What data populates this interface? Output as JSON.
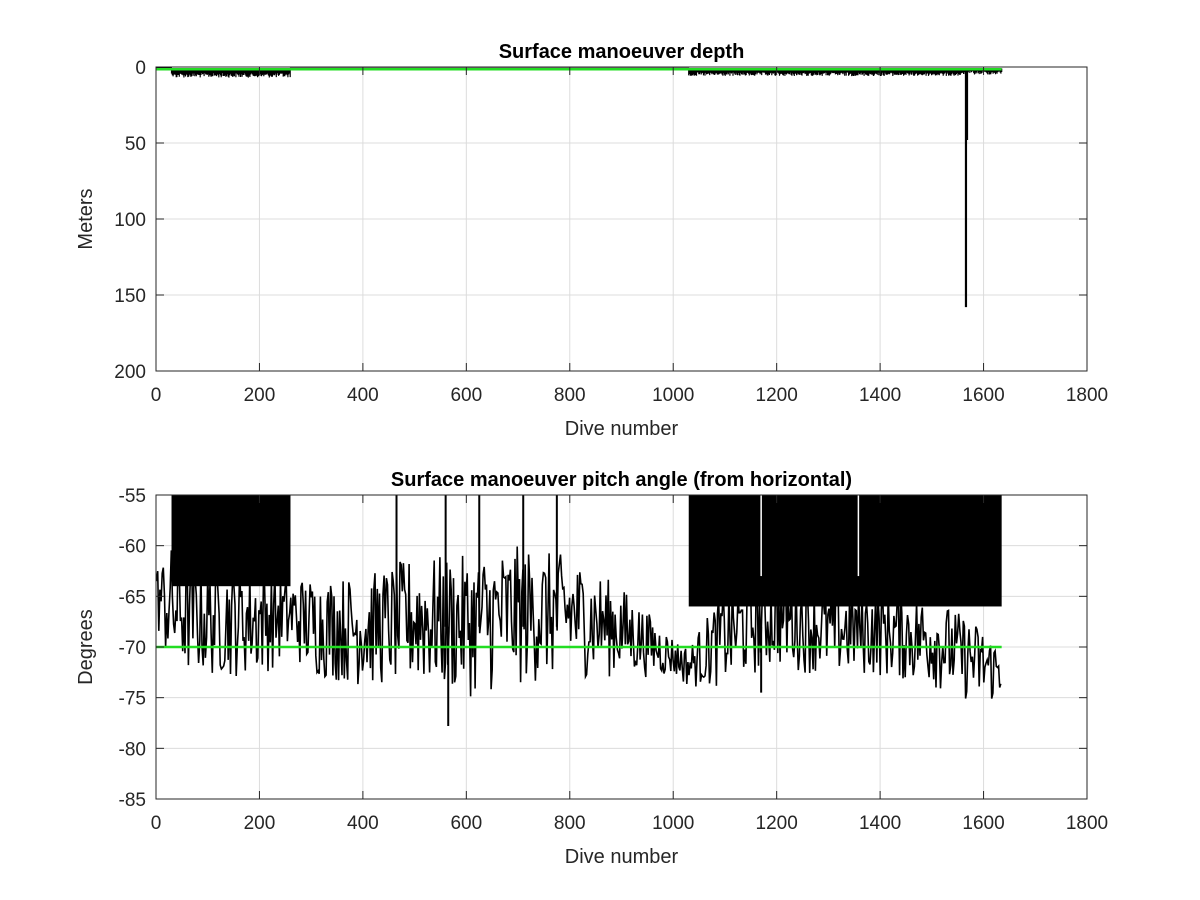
{
  "colors": {
    "data_trace": "#000000",
    "reference_line": "#22dd22",
    "grid": "#dcdcdc",
    "axes": "#262626"
  },
  "chart_data": [
    {
      "type": "line",
      "title": "Surface manoeuver depth",
      "xlabel": "Dive number",
      "ylabel": "Meters",
      "xlim": [
        0,
        1800
      ],
      "ylim": [
        0,
        200
      ],
      "y_reversed": true,
      "grid": true,
      "x_ticks": [
        "0",
        "200",
        "400",
        "600",
        "800",
        "1000",
        "1200",
        "1400",
        "1600",
        "1800"
      ],
      "y_ticks": [
        "0",
        "50",
        "100",
        "150",
        "200"
      ],
      "x_tick_values": [
        0,
        200,
        400,
        600,
        800,
        1000,
        1200,
        1400,
        1600,
        1800
      ],
      "y_tick_values": [
        0,
        50,
        100,
        150,
        200
      ],
      "data_range": [
        1,
        1635
      ],
      "series": [
        {
          "color": "#000000",
          "segments": [
            {
              "x": [
                1,
                30
              ],
              "y_min": 0,
              "y_max": 2
            },
            {
              "x": [
                30,
                260
              ],
              "y_min": 2,
              "y_max": 7
            },
            {
              "x": [
                260,
                1030
              ],
              "y_min": 0.5,
              "y_max": 2
            },
            {
              "x": [
                1030,
                1560
              ],
              "y_min": 2,
              "y_max": 6
            },
            {
              "x": [
                1560,
                1635
              ],
              "y_min": 1,
              "y_max": 5
            }
          ],
          "spikes": [
            {
              "x": 1566,
              "y": 158
            },
            {
              "x": 1568,
              "y": 48
            }
          ]
        },
        {
          "color": "#22dd22",
          "type": "reference",
          "x": [
            1,
            1635
          ],
          "y": [
            1.5,
            1.5
          ]
        }
      ]
    },
    {
      "type": "line",
      "title": "Surface manoeuver pitch angle (from horizontal)",
      "xlabel": "Dive number",
      "ylabel": "Degrees",
      "xlim": [
        0,
        1800
      ],
      "ylim": [
        -85,
        -55
      ],
      "grid": true,
      "x_ticks": [
        "0",
        "200",
        "400",
        "600",
        "800",
        "1000",
        "1200",
        "1400",
        "1600",
        "1800"
      ],
      "y_ticks": [
        "-55",
        "-60",
        "-65",
        "-70",
        "-75",
        "-80",
        "-85"
      ],
      "x_tick_values": [
        0,
        200,
        400,
        600,
        800,
        1000,
        1200,
        1400,
        1600,
        1800
      ],
      "y_tick_values": [
        -55,
        -60,
        -65,
        -70,
        -75,
        -80,
        -85
      ],
      "data_range": [
        1,
        1635
      ],
      "series": [
        {
          "color": "#000000",
          "filled_blocks": [
            {
              "x": [
                30,
                260
              ],
              "y_top": -55,
              "y_bottom": -64
            },
            {
              "x": [
                1030,
                1635
              ],
              "y_top": -55,
              "y_bottom": -66
            }
          ],
          "band_knots": [
            {
              "x": 0,
              "lo": -68,
              "hi": -62
            },
            {
              "x": 30,
              "lo": -73,
              "hi": -60
            },
            {
              "x": 100,
              "lo": -73,
              "hi": -62
            },
            {
              "x": 200,
              "lo": -73,
              "hi": -62
            },
            {
              "x": 260,
              "lo": -71,
              "hi": -63
            },
            {
              "x": 300,
              "lo": -73,
              "hi": -63
            },
            {
              "x": 400,
              "lo": -74,
              "hi": -63
            },
            {
              "x": 500,
              "lo": -74,
              "hi": -61
            },
            {
              "x": 600,
              "lo": -75,
              "hi": -61
            },
            {
              "x": 700,
              "lo": -74,
              "hi": -60
            },
            {
              "x": 800,
              "lo": -73,
              "hi": -61
            },
            {
              "x": 900,
              "lo": -73,
              "hi": -64
            },
            {
              "x": 1000,
              "lo": -73,
              "hi": -69
            },
            {
              "x": 1030,
              "lo": -74,
              "hi": -70
            },
            {
              "x": 1100,
              "lo": -74,
              "hi": -64
            },
            {
              "x": 1200,
              "lo": -72,
              "hi": -62
            },
            {
              "x": 1300,
              "lo": -73,
              "hi": -64
            },
            {
              "x": 1400,
              "lo": -73,
              "hi": -64
            },
            {
              "x": 1500,
              "lo": -74,
              "hi": -65
            },
            {
              "x": 1600,
              "lo": -76,
              "hi": -68
            },
            {
              "x": 1635,
              "lo": -75,
              "hi": -70
            }
          ],
          "spikes": [
            {
              "x": 465,
              "y": -55
            },
            {
              "x": 560,
              "y": -55
            },
            {
              "x": 565,
              "y": -77.8
            },
            {
              "x": 625,
              "y": -55
            },
            {
              "x": 710,
              "y": -55
            },
            {
              "x": 775,
              "y": -55
            },
            {
              "x": 1170,
              "y": -74.5
            }
          ]
        },
        {
          "color": "#22dd22",
          "type": "reference",
          "x": [
            1,
            1635
          ],
          "y": [
            -70,
            -70
          ]
        }
      ]
    }
  ]
}
